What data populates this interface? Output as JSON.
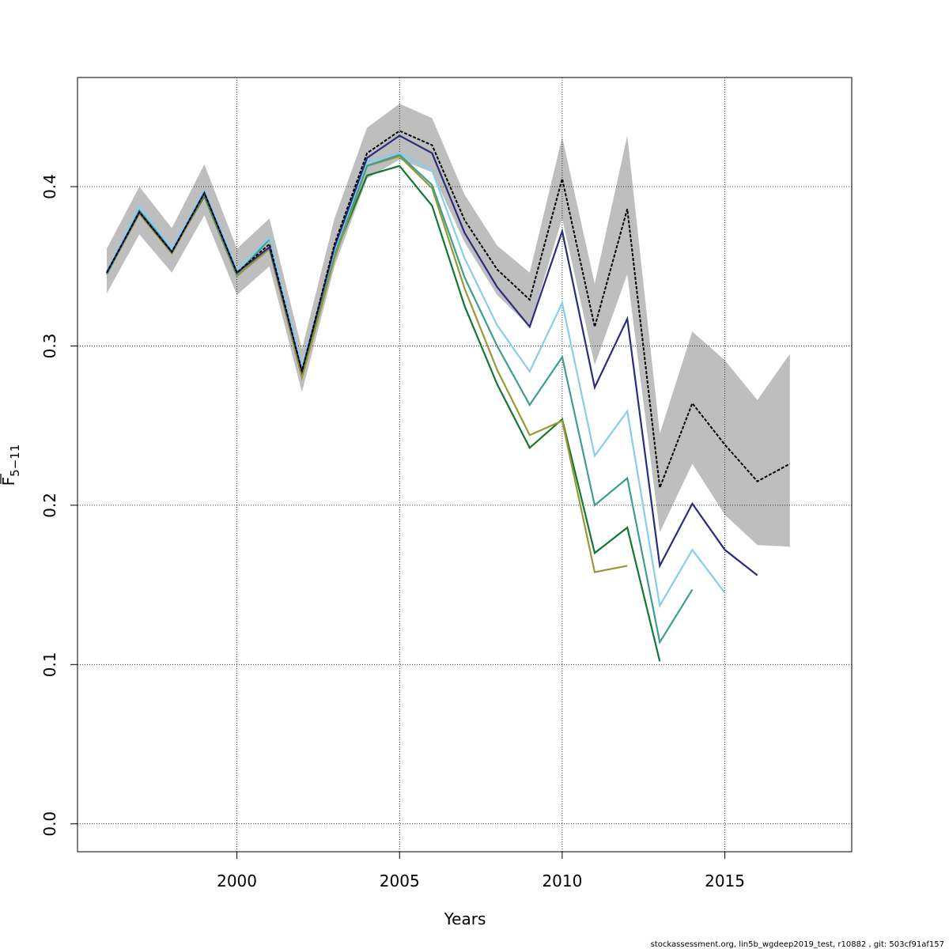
{
  "chart_data": {
    "type": "line",
    "title": "",
    "xlabel": "Years",
    "ylabel_main": "F",
    "ylabel_sub": "5−11",
    "xlim": [
      1995.1,
      2018.9
    ],
    "ylim": [
      -0.0175,
      0.4685
    ],
    "x_ticks": [
      2000,
      2005,
      2010,
      2015
    ],
    "y_ticks": [
      0.0,
      0.1,
      0.2,
      0.3,
      0.4
    ],
    "y_tick_labels": [
      "0.0",
      "0.1",
      "0.2",
      "0.3",
      "0.4"
    ],
    "grid": true,
    "band": {
      "x": [
        1996,
        1997,
        1998,
        1999,
        2000,
        2001,
        2002,
        2003,
        2004,
        2005,
        2006,
        2007,
        2008,
        2009,
        2010,
        2011,
        2012,
        2013,
        2014,
        2015,
        2016,
        2017
      ],
      "lower": [
        0.333,
        0.37,
        0.346,
        0.382,
        0.332,
        0.35,
        0.271,
        0.35,
        0.405,
        0.417,
        0.409,
        0.365,
        0.332,
        0.312,
        0.38,
        0.288,
        0.345,
        0.183,
        0.226,
        0.194,
        0.175,
        0.174
      ],
      "upper": [
        0.361,
        0.4,
        0.374,
        0.414,
        0.361,
        0.38,
        0.298,
        0.38,
        0.437,
        0.452,
        0.443,
        0.395,
        0.363,
        0.346,
        0.431,
        0.339,
        0.432,
        0.245,
        0.309,
        0.291,
        0.266,
        0.295
      ],
      "color": "#bebebe"
    },
    "series": [
      {
        "color": "#000000",
        "dashed": true,
        "x": [
          1996,
          1997,
          1998,
          1999,
          2000,
          2001,
          2002,
          2003,
          2004,
          2005,
          2006,
          2007,
          2008,
          2009,
          2010,
          2011,
          2012,
          2013,
          2014,
          2015,
          2016,
          2017
        ],
        "values": [
          0.346,
          0.384,
          0.359,
          0.396,
          0.346,
          0.364,
          0.284,
          0.364,
          0.421,
          0.435,
          0.426,
          0.379,
          0.348,
          0.329,
          0.405,
          0.312,
          0.386,
          0.211,
          0.264,
          0.238,
          0.215,
          0.226
        ]
      },
      {
        "color": "#2b2b80",
        "x": [
          1996,
          1997,
          1998,
          1999,
          2000,
          2001,
          2002,
          2003,
          2004,
          2005,
          2006,
          2007,
          2008,
          2009,
          2010,
          2011,
          2012,
          2013,
          2014,
          2015,
          2016
        ],
        "values": [
          0.346,
          0.384,
          0.359,
          0.396,
          0.346,
          0.362,
          0.284,
          0.362,
          0.418,
          0.432,
          0.421,
          0.371,
          0.337,
          0.312,
          0.372,
          0.274,
          0.317,
          0.162,
          0.201,
          0.172,
          0.156
        ]
      },
      {
        "color": "#87ceeb",
        "x": [
          1996,
          1997,
          1998,
          1999,
          2000,
          2001,
          2002,
          2003,
          2004,
          2005,
          2006,
          2007,
          2008,
          2009,
          2010,
          2011,
          2012,
          2013,
          2014,
          2015
        ],
        "values": [
          0.346,
          0.388,
          0.361,
          0.398,
          0.348,
          0.368,
          0.287,
          0.36,
          0.416,
          0.421,
          0.41,
          0.355,
          0.313,
          0.284,
          0.327,
          0.231,
          0.259,
          0.137,
          0.172,
          0.145
        ]
      },
      {
        "color": "#3c9e8f",
        "x": [
          1996,
          1997,
          1998,
          1999,
          2000,
          2001,
          2002,
          2003,
          2004,
          2005,
          2006,
          2007,
          2008,
          2009,
          2010,
          2011,
          2012,
          2013,
          2014
        ],
        "values": [
          0.345,
          0.385,
          0.36,
          0.396,
          0.345,
          0.367,
          0.286,
          0.358,
          0.413,
          0.42,
          0.401,
          0.343,
          0.3,
          0.263,
          0.293,
          0.2,
          0.217,
          0.114,
          0.147
        ]
      },
      {
        "color": "#999933",
        "x": [
          1996,
          1997,
          1998,
          1999,
          2000,
          2001,
          2002,
          2003,
          2004,
          2005,
          2006,
          2007,
          2008,
          2009,
          2010,
          2011,
          2012
        ],
        "values": [
          0.345,
          0.383,
          0.358,
          0.395,
          0.344,
          0.361,
          0.28,
          0.355,
          0.413,
          0.419,
          0.399,
          0.336,
          0.285,
          0.244,
          0.253,
          0.158,
          0.162
        ]
      },
      {
        "color": "#117733",
        "x": [
          1996,
          1997,
          1998,
          1999,
          2000,
          2001,
          2002,
          2003,
          2004,
          2005,
          2006,
          2007,
          2008,
          2009,
          2010,
          2011,
          2012,
          2013
        ],
        "values": [
          0.346,
          0.384,
          0.359,
          0.394,
          0.344,
          0.361,
          0.281,
          0.357,
          0.407,
          0.413,
          0.388,
          0.325,
          0.276,
          0.236,
          0.254,
          0.17,
          0.186,
          0.102
        ]
      }
    ]
  },
  "footer_text": "stockassessment.org, lin5b_wgdeep2019_test, r10882 , git: 503cf91af157"
}
